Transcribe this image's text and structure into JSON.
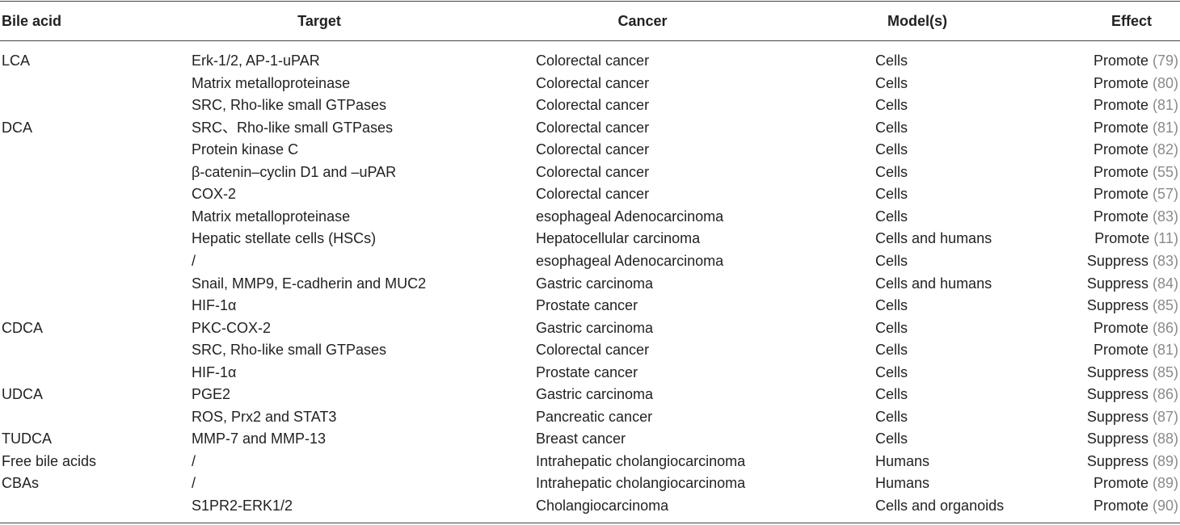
{
  "table": {
    "header": [
      "Bile acid",
      "Target",
      "Cancer",
      "Model(s)",
      "Effect"
    ],
    "rows": [
      {
        "bile_acid": "LCA",
        "target": "Erk-1/2, AP-1-uPAR",
        "cancer": "Colorectal cancer",
        "model": "Cells",
        "effect": "Promote",
        "ref": "(79)"
      },
      {
        "target": "Matrix metalloproteinase",
        "cancer": "Colorectal cancer",
        "model": "Cells",
        "effect": "Promote",
        "ref": "(80)"
      },
      {
        "target": "SRC, Rho-like small GTPases",
        "cancer": "Colorectal cancer",
        "model": "Cells",
        "effect": "Promote",
        "ref": "(81)"
      },
      {
        "bile_acid": "DCA",
        "target": "SRC、Rho-like small GTPases",
        "cancer": "Colorectal cancer",
        "model": "Cells",
        "effect": "Promote",
        "ref": "(81)"
      },
      {
        "target": "Protein kinase C",
        "cancer": "Colorectal cancer",
        "model": "Cells",
        "effect": "Promote",
        "ref": "(82)"
      },
      {
        "target": "β-catenin–cyclin D1 and –uPAR",
        "cancer": "Colorectal cancer",
        "model": "Cells",
        "effect": "Promote",
        "ref": "(55)"
      },
      {
        "target": "COX-2",
        "cancer": "Colorectal cancer",
        "model": "Cells",
        "effect": "Promote",
        "ref": "(57)"
      },
      {
        "target": "Matrix metalloproteinase",
        "cancer": "esophageal Adenocarcinoma",
        "model": "Cells",
        "effect": "Promote",
        "ref": "(83)"
      },
      {
        "target": "Hepatic stellate cells (HSCs)",
        "cancer": "Hepatocellular carcinoma",
        "model": "Cells and humans",
        "effect": "Promote",
        "ref": "(11)"
      },
      {
        "target": "/",
        "cancer": "esophageal Adenocarcinoma",
        "model": "Cells",
        "effect": "Suppress",
        "ref": "(83)"
      },
      {
        "target": "Snail, MMP9, E-cadherin and MUC2",
        "cancer": "Gastric carcinoma",
        "model": "Cells and humans",
        "effect": "Suppress",
        "ref": "(84)"
      },
      {
        "target": "HIF-1α",
        "cancer": "Prostate cancer",
        "model": "Cells",
        "effect": "Suppress",
        "ref": "(85)"
      },
      {
        "bile_acid": "CDCA",
        "target": "PKC-COX-2",
        "cancer": "Gastric carcinoma",
        "model": "Cells",
        "effect": "Promote",
        "ref": "(86)"
      },
      {
        "target": "SRC, Rho-like small GTPases",
        "cancer": "Colorectal cancer",
        "model": "Cells",
        "effect": "Promote",
        "ref": "(81)"
      },
      {
        "target": "HIF-1α",
        "cancer": "Prostate cancer",
        "model": "Cells",
        "effect": "Suppress",
        "ref": "(85)"
      },
      {
        "bile_acid": "UDCA",
        "target": "PGE2",
        "cancer": "Gastric carcinoma",
        "model": "Cells",
        "effect": "Suppress",
        "ref": "(86)"
      },
      {
        "target": "ROS, Prx2 and STAT3",
        "cancer": "Pancreatic cancer",
        "model": "Cells",
        "effect": "Suppress",
        "ref": "(87)"
      },
      {
        "bile_acid": "TUDCA",
        "target": "MMP-7 and MMP-13",
        "cancer": "Breast cancer",
        "model": "Cells",
        "effect": "Suppress",
        "ref": "(88)"
      },
      {
        "bile_acid": "Free bile acids",
        "target": "/",
        "cancer": "Intrahepatic cholangiocarcinoma",
        "model": "Humans",
        "effect": "Suppress",
        "ref": "(89)"
      },
      {
        "bile_acid": "CBAs",
        "target": "/",
        "cancer": "Intrahepatic cholangiocarcinoma",
        "model": "Humans",
        "effect": "Promote",
        "ref": "(89)"
      },
      {
        "target": "S1PR2-ERK1/2",
        "cancer": "Cholangiocarcinoma",
        "model": "Cells and organoids",
        "effect": "Promote",
        "ref": "(90)"
      }
    ]
  }
}
